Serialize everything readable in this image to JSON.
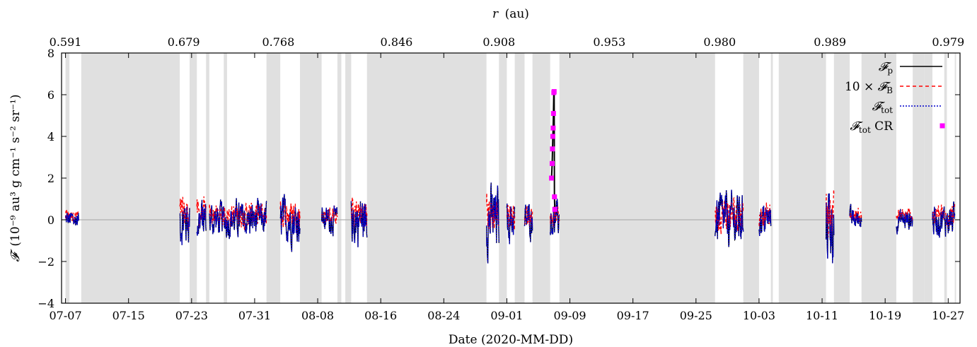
{
  "chart_data": {
    "type": "line",
    "xlabel": "Date (2020-MM-DD)",
    "x2label_symbol": "r",
    "x2label_unit": "(au)",
    "ylabel_symbol": "𝓕",
    "ylabel_unit": "(10⁻⁹ au³ g cm⁻¹ s⁻² sr⁻¹)",
    "xlim": [
      "2020-07-06",
      "2020-10-28"
    ],
    "ylim": [
      -4,
      8
    ],
    "grid": false,
    "legend_position": "top-right",
    "x_ticks": [
      "07-07",
      "07-15",
      "07-23",
      "07-31",
      "08-08",
      "08-16",
      "08-24",
      "09-01",
      "09-09",
      "09-17",
      "09-25",
      "10-03",
      "10-11",
      "10-19",
      "10-27"
    ],
    "y_ticks": [
      "−4",
      "−2",
      "0",
      "2",
      "4",
      "6",
      "8"
    ],
    "x2_ticks": [
      {
        "date": "2020-07-07",
        "label": "0.591"
      },
      {
        "date": "2020-07-22",
        "label": "0.679"
      },
      {
        "date": "2020-08-03",
        "label": "0.768"
      },
      {
        "date": "2020-08-18",
        "label": "0.846"
      },
      {
        "date": "2020-08-31",
        "label": "0.908"
      },
      {
        "date": "2020-09-14",
        "label": "0.953"
      },
      {
        "date": "2020-09-28",
        "label": "0.980"
      },
      {
        "date": "2020-10-12",
        "label": "0.989"
      },
      {
        "date": "2020-10-27",
        "label": "0.979"
      }
    ],
    "shaded_intervals": [
      [
        "2020-07-07",
        "2020-07-07T12:00"
      ],
      [
        "2020-07-09",
        "2020-07-21T12:00"
      ],
      [
        "2020-07-22T18:00",
        "2020-07-23T16:00"
      ],
      [
        "2020-07-24T20:00",
        "2020-07-25T06:00"
      ],
      [
        "2020-07-27T02:00",
        "2020-07-27T12:00"
      ],
      [
        "2020-08-01T12:00",
        "2020-08-03T06:00"
      ],
      [
        "2020-08-05T18:00",
        "2020-08-08T12:00"
      ],
      [
        "2020-08-10T12:00",
        "2020-08-11T00:00"
      ],
      [
        "2020-08-11T12:00",
        "2020-08-12T06:00"
      ],
      [
        "2020-08-14T06:00",
        "2020-08-29T10:00"
      ],
      [
        "2020-08-31T00:00",
        "2020-09-01T00:00"
      ],
      [
        "2020-09-02T00:00",
        "2020-09-03T06:00"
      ],
      [
        "2020-09-04T06:00",
        "2020-09-06T12:00"
      ],
      [
        "2020-09-07T16:00",
        "2020-09-27T10:00"
      ],
      [
        "2020-10-01T00:00",
        "2020-10-03T00:00"
      ],
      [
        "2020-10-04T12:00",
        "2020-10-04T18:00"
      ],
      [
        "2020-10-05T12:00",
        "2020-10-11T12:00"
      ],
      [
        "2020-10-12T12:00",
        "2020-10-14T12:00"
      ],
      [
        "2020-10-16T00:00",
        "2020-10-20T10:00"
      ],
      [
        "2020-10-22T12:00",
        "2020-10-24T00:00"
      ],
      [
        "2020-10-24T00:00",
        "2020-10-25T00:00"
      ],
      [
        "2020-10-26T12:00",
        "2020-10-26T20:00"
      ],
      [
        "2020-10-27T20:00",
        "2020-10-28T00:00"
      ]
    ],
    "data_segments": [
      {
        "start": "2020-07-07T00:00",
        "end": "2020-07-08T16:00",
        "scale": 0.45
      },
      {
        "start": "2020-07-21T12:00",
        "end": "2020-07-22T18:00",
        "scale": 1.1
      },
      {
        "start": "2020-07-23T16:00",
        "end": "2020-07-24T20:00",
        "scale": 1.0
      },
      {
        "start": "2020-07-25T06:00",
        "end": "2020-08-01T12:00",
        "scale": 0.8
      },
      {
        "start": "2020-08-03T06:00",
        "end": "2020-08-05T18:00",
        "scale": 1.0
      },
      {
        "start": "2020-08-08T12:00",
        "end": "2020-08-10T12:00",
        "scale": 0.6
      },
      {
        "start": "2020-08-12T06:00",
        "end": "2020-08-14T06:00",
        "scale": 1.2
      },
      {
        "start": "2020-08-29T10:00",
        "end": "2020-08-31T00:00",
        "scale": 1.5
      },
      {
        "start": "2020-09-01T00:00",
        "end": "2020-09-02T00:00",
        "scale": 0.9
      },
      {
        "start": "2020-09-03T06:00",
        "end": "2020-09-04T06:00",
        "scale": 0.8
      },
      {
        "start": "2020-09-06T12:00",
        "end": "2020-09-07T16:00",
        "scale": 0.8
      },
      {
        "start": "2020-09-27T10:00",
        "end": "2020-10-01T00:00",
        "scale": 1.2
      },
      {
        "start": "2020-10-03T00:00",
        "end": "2020-10-04T12:00",
        "scale": 0.8
      },
      {
        "start": "2020-10-11T12:00",
        "end": "2020-10-12T12:00",
        "scale": 1.8
      },
      {
        "start": "2020-10-14T12:00",
        "end": "2020-10-16T00:00",
        "scale": 0.5
      },
      {
        "start": "2020-10-20T10:00",
        "end": "2020-10-22T12:00",
        "scale": 0.5
      },
      {
        "start": "2020-10-25T00:00",
        "end": "2020-10-27T20:00",
        "scale": 0.7
      }
    ],
    "cr_event": {
      "x": [
        "2020-09-06T16:00",
        "2020-09-06T18:00",
        "2020-09-06T19:00",
        "2020-09-06T20:00",
        "2020-09-06T21:00",
        "2020-09-06T22:00",
        "2020-09-06T23:00",
        "2020-09-07T00:00",
        "2020-09-07T01:00",
        "2020-09-07T02:00"
      ],
      "y": [
        2.0,
        2.7,
        3.4,
        4.0,
        4.4,
        5.1,
        6.1,
        6.15,
        1.1,
        0.5
      ]
    },
    "series": [
      {
        "key": "Fp",
        "name_main": "𝓕",
        "name_sub": "p",
        "name_prefix": "",
        "name_suffix": "",
        "color": "#000000",
        "style": "solid"
      },
      {
        "key": "FB",
        "name_main": "𝓕",
        "name_sub": "B",
        "name_prefix": "10 × ",
        "name_suffix": "",
        "color": "#ff0000",
        "style": "dashed"
      },
      {
        "key": "Ftot",
        "name_main": "𝓕",
        "name_sub": "tot",
        "name_prefix": "",
        "name_suffix": "",
        "color": "#0000cc",
        "style": "dotted"
      },
      {
        "key": "FtotCR",
        "name_main": "𝓕",
        "name_sub": "tot",
        "name_prefix": "",
        "name_suffix": " CR",
        "color": "#ff00ff",
        "style": "points"
      }
    ]
  }
}
